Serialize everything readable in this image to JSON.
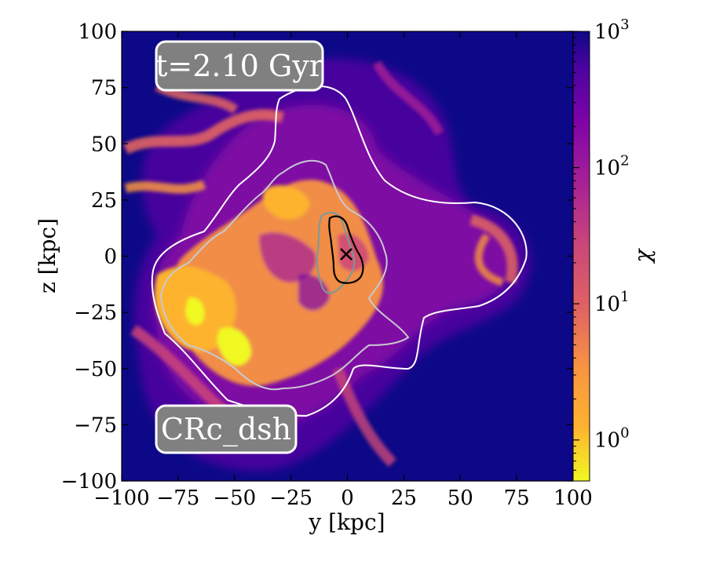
{
  "chart_data": {
    "type": "heatmap",
    "title": "",
    "xlabel": "y [kpc]",
    "ylabel": "z [kpc]",
    "xlim": [
      -100,
      100
    ],
    "ylim": [
      -100,
      100
    ],
    "xticks": [
      -100,
      -75,
      -50,
      -25,
      0,
      25,
      50,
      75,
      100
    ],
    "yticks": [
      -100,
      -75,
      -50,
      -25,
      0,
      25,
      50,
      75,
      100
    ],
    "xtick_labels": [
      "−100",
      "−75",
      "−50",
      "−25",
      "0",
      "25",
      "50",
      "75",
      "100"
    ],
    "ytick_labels": [
      "−100",
      "−75",
      "−50",
      "−25",
      "0",
      "25",
      "50",
      "75",
      "100"
    ],
    "colorbar": {
      "label": "χ",
      "scale": "log",
      "range": [
        0.5,
        1000
      ],
      "colormap": "plasma",
      "tick_values": [
        1,
        10,
        100,
        1000
      ],
      "tick_labels": [
        "10^0",
        "10^1",
        "10^2",
        "10^3"
      ]
    },
    "annotations": {
      "time_label": "t=2.10 Gyr",
      "run_label": "CRc_dsh"
    },
    "marker": {
      "symbol": "x",
      "y": 0,
      "z": 0,
      "color": "#000000"
    },
    "background_value": 500,
    "contours": [
      {
        "name": "outer",
        "color": "#ffffff"
      },
      {
        "name": "middle",
        "color": "#c8c8d0"
      },
      {
        "name": "inner",
        "color": "#7a9a9a"
      },
      {
        "name": "core",
        "color": "#000000"
      }
    ],
    "grid": false
  }
}
